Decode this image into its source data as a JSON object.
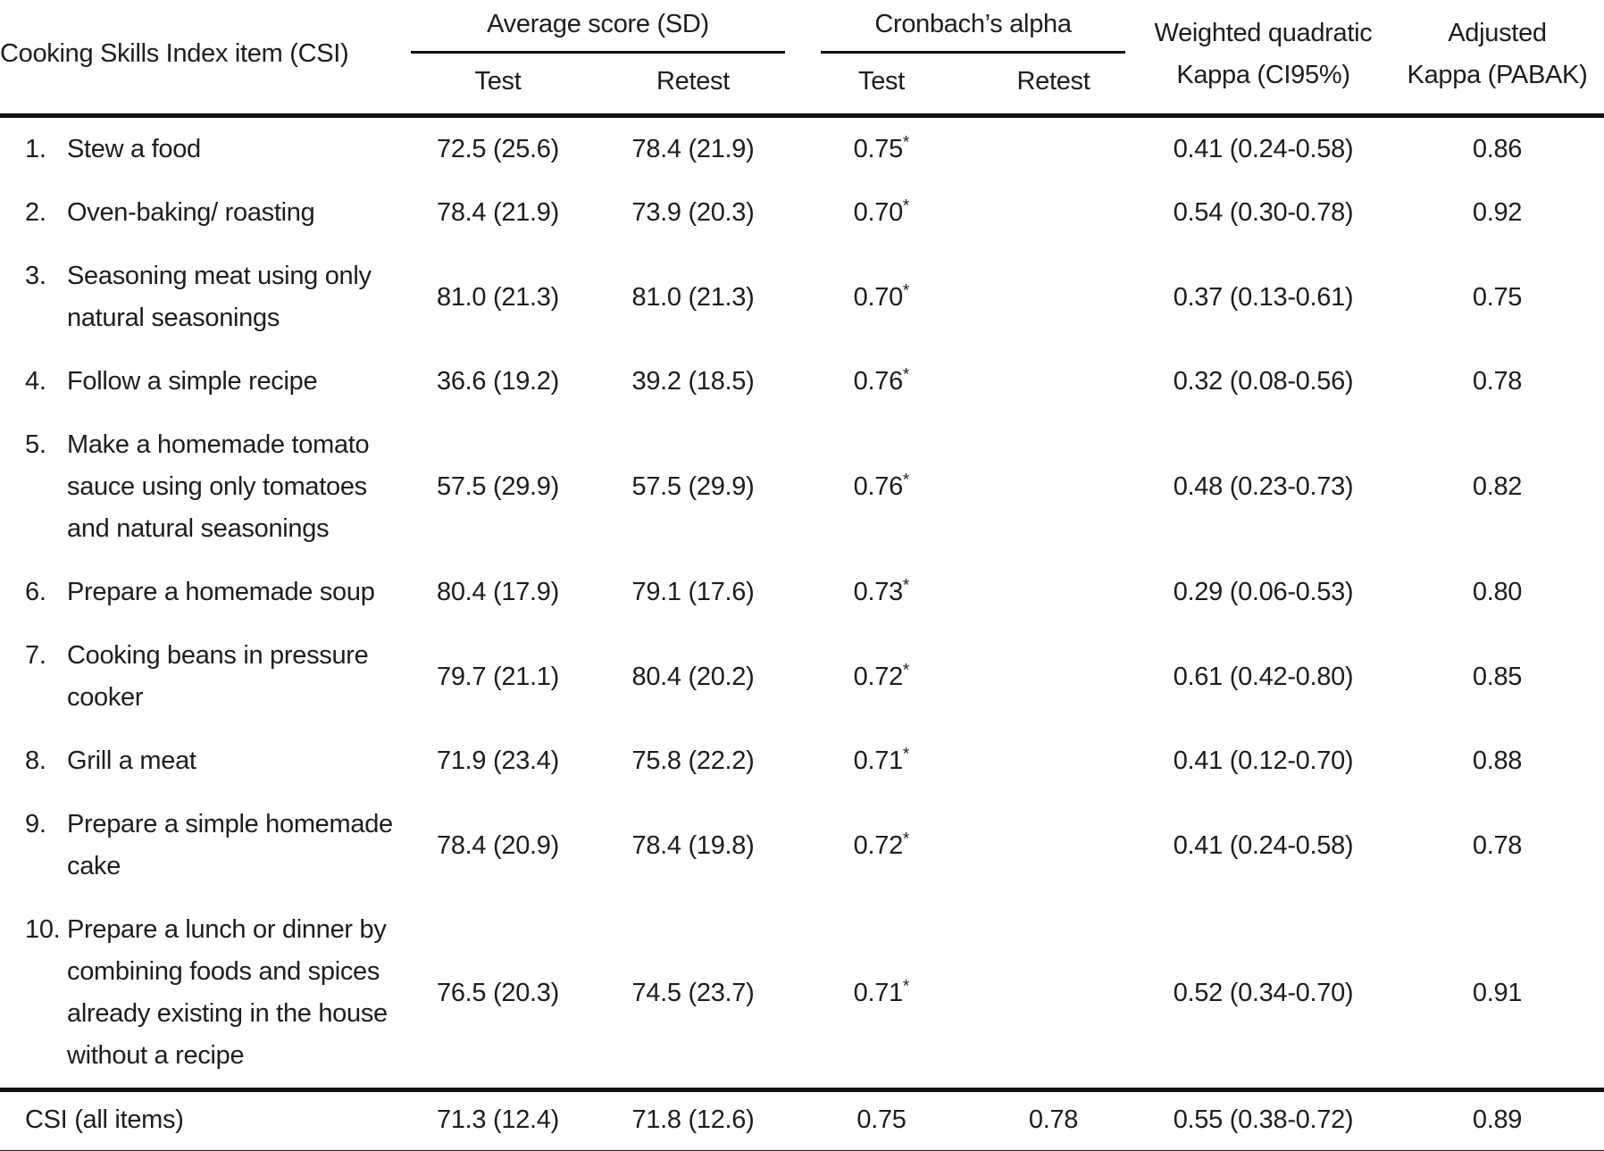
{
  "table": {
    "header": {
      "item_col": "Cooking Skills Index item (CSI)",
      "avg_group": "Average score (SD)",
      "alpha_group": "Cronbach’s alpha",
      "avg_test": "Test",
      "avg_retest": "Retest",
      "alpha_test": "Test",
      "alpha_retest": "Retest",
      "kappa_col": [
        "Weighted quadratic",
        "Kappa (CI95%)"
      ],
      "pabak_col": [
        "Adjusted",
        "Kappa (PABAK)"
      ]
    },
    "rows": [
      {
        "num": "1.",
        "item": [
          "Stew a food"
        ],
        "avg_test": "72.5 (25.6)",
        "avg_retest": "78.4 (21.9)",
        "alpha_test": "0.75",
        "alpha_star": "*",
        "alpha_retest": "",
        "kappa": "0.41 (0.24-0.58)",
        "pabak": "0.86"
      },
      {
        "num": "2.",
        "item": [
          "Oven-baking/ roasting"
        ],
        "avg_test": "78.4 (21.9)",
        "avg_retest": "73.9 (20.3)",
        "alpha_test": "0.70",
        "alpha_star": "*",
        "alpha_retest": "",
        "kappa": "0.54 (0.30-0.78)",
        "pabak": "0.92"
      },
      {
        "num": "3.",
        "item": [
          "Seasoning meat using only",
          "natural seasonings"
        ],
        "avg_test": "81.0 (21.3)",
        "avg_retest": "81.0 (21.3)",
        "alpha_test": "0.70",
        "alpha_star": "*",
        "alpha_retest": "",
        "kappa": "0.37 (0.13-0.61)",
        "pabak": "0.75"
      },
      {
        "num": "4.",
        "item": [
          "Follow a simple recipe"
        ],
        "avg_test": "36.6 (19.2)",
        "avg_retest": "39.2 (18.5)",
        "alpha_test": "0.76",
        "alpha_star": "*",
        "alpha_retest": "",
        "kappa": "0.32 (0.08-0.56)",
        "pabak": "0.78"
      },
      {
        "num": "5.",
        "item": [
          "Make a homemade tomato",
          "sauce using only tomatoes",
          "and natural seasonings"
        ],
        "avg_test": "57.5 (29.9)",
        "avg_retest": "57.5 (29.9)",
        "alpha_test": "0.76",
        "alpha_star": "*",
        "alpha_retest": "",
        "kappa": "0.48 (0.23-0.73)",
        "pabak": "0.82"
      },
      {
        "num": "6.",
        "item": [
          "Prepare a homemade soup"
        ],
        "avg_test": "80.4 (17.9)",
        "avg_retest": "79.1 (17.6)",
        "alpha_test": "0.73",
        "alpha_star": "*",
        "alpha_retest": "",
        "kappa": "0.29 (0.06-0.53)",
        "pabak": "0.80"
      },
      {
        "num": "7.",
        "item": [
          "Cooking beans in pressure",
          "cooker"
        ],
        "avg_test": "79.7 (21.1)",
        "avg_retest": "80.4 (20.2)",
        "alpha_test": "0.72",
        "alpha_star": "*",
        "alpha_retest": "",
        "kappa": "0.61 (0.42-0.80)",
        "pabak": "0.85"
      },
      {
        "num": "8.",
        "item": [
          "Grill a meat"
        ],
        "avg_test": "71.9 (23.4)",
        "avg_retest": "75.8 (22.2)",
        "alpha_test": "0.71",
        "alpha_star": "*",
        "alpha_retest": "",
        "kappa": "0.41 (0.12-0.70)",
        "pabak": "0.88"
      },
      {
        "num": "9.",
        "item": [
          "Prepare a simple homemade",
          "cake"
        ],
        "avg_test": "78.4 (20.9)",
        "avg_retest": "78.4 (19.8)",
        "alpha_test": "0.72",
        "alpha_star": "*",
        "alpha_retest": "",
        "kappa": "0.41 (0.24-0.58)",
        "pabak": "0.78"
      },
      {
        "num": "10.",
        "item": [
          "Prepare a lunch or dinner by",
          "combining foods and spices",
          "already existing in the house",
          "without a recipe"
        ],
        "avg_test": "76.5 (20.3)",
        "avg_retest": "74.5 (23.7)",
        "alpha_test": "0.71",
        "alpha_star": "*",
        "alpha_retest": "",
        "kappa": "0.52 (0.34-0.70)",
        "pabak": "0.91"
      }
    ],
    "footer": {
      "label": "CSI (all items)",
      "avg_test": "71.3 (12.4)",
      "avg_retest": "71.8 (12.6)",
      "alpha_test": "0.75",
      "alpha_retest": "0.78",
      "kappa": "0.55 (0.38-0.72)",
      "pabak": "0.89"
    }
  }
}
